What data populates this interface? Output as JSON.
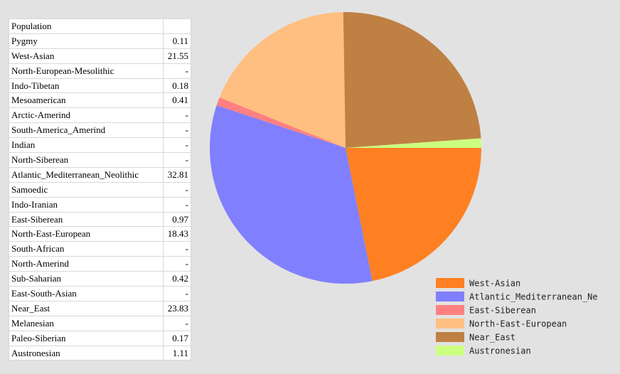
{
  "table": {
    "header": [
      "Population",
      ""
    ],
    "rows": [
      [
        "Pygmy",
        "0.11"
      ],
      [
        "West-Asian",
        "21.55"
      ],
      [
        "North-European-Mesolithic",
        "-"
      ],
      [
        "Indo-Tibetan",
        "0.18"
      ],
      [
        "Mesoamerican",
        "0.41"
      ],
      [
        "Arctic-Amerind",
        "-"
      ],
      [
        "South-America_Amerind",
        "-"
      ],
      [
        "Indian",
        "-"
      ],
      [
        "North-Siberean",
        "-"
      ],
      [
        "Atlantic_Mediterranean_Neolithic",
        "32.81"
      ],
      [
        "Samoedic",
        "-"
      ],
      [
        "Indo-Iranian",
        "-"
      ],
      [
        "East-Siberean",
        "0.97"
      ],
      [
        "North-East-European",
        "18.43"
      ],
      [
        "South-African",
        "-"
      ],
      [
        "North-Amerind",
        "-"
      ],
      [
        "Sub-Saharian",
        "0.42"
      ],
      [
        "East-South-Asian",
        "-"
      ],
      [
        "Near_East",
        "23.83"
      ],
      [
        "Melanesian",
        "-"
      ],
      [
        "Paleo-Siberian",
        "0.17"
      ],
      [
        "Austronesian",
        "1.11"
      ]
    ]
  },
  "chart_data": {
    "type": "pie",
    "categories": [
      "West-Asian",
      "Atlantic_Mediterranean_Ne",
      "East-Siberean",
      "North-East-European",
      "Near_East",
      "Austronesian"
    ],
    "values": [
      21.55,
      32.81,
      0.97,
      18.43,
      23.83,
      1.11
    ],
    "colors": [
      "#ff8022",
      "#8080ff",
      "#ff8080",
      "#ffbf80",
      "#bf8044",
      "#ccff80"
    ],
    "legend": "bottom-right"
  }
}
